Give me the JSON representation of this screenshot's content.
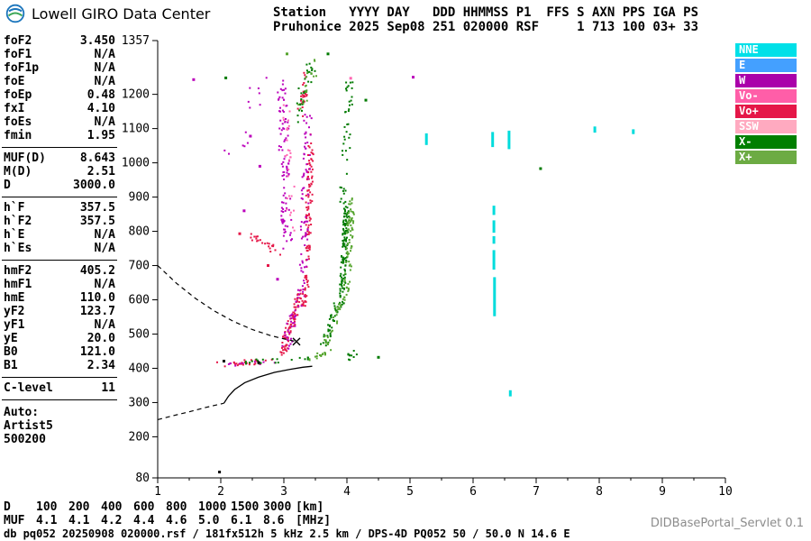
{
  "header": {
    "brand": "Lowell GIRO Data Center",
    "line1": "Station   YYYY DAY   DDD HHMMSS P1  FFS S AXN PPS IGA PS",
    "line2": "Pruhonice 2025 Sep08 251 020000 RSF     1 713 100 03+ 33"
  },
  "params": {
    "groups": [
      [
        [
          "foF2",
          "3.450"
        ],
        [
          "foF1",
          "N/A"
        ],
        [
          "foF1p",
          "N/A"
        ],
        [
          "foE",
          "N/A"
        ],
        [
          "foEp",
          "0.48"
        ],
        [
          "fxI",
          "4.10"
        ],
        [
          "foEs",
          "N/A"
        ],
        [
          "fmin",
          "1.95"
        ]
      ],
      [
        [
          "MUF(D)",
          "8.643"
        ],
        [
          "M(D)",
          "2.51"
        ],
        [
          "D",
          "3000.0"
        ]
      ],
      [
        [
          "h`F",
          "357.5"
        ],
        [
          "h`F2",
          "357.5"
        ],
        [
          "h`E",
          "N/A"
        ],
        [
          "h`Es",
          "N/A"
        ]
      ],
      [
        [
          "hmF2",
          "405.2"
        ],
        [
          "hmF1",
          "N/A"
        ],
        [
          "hmE",
          "110.0"
        ],
        [
          "yF2",
          "123.7"
        ],
        [
          "yF1",
          "N/A"
        ],
        [
          "yE",
          "20.0"
        ],
        [
          "B0",
          "121.0"
        ],
        [
          "B1",
          "2.34"
        ]
      ],
      [
        [
          "C-level",
          "11"
        ]
      ]
    ],
    "auto_label": "Auto:",
    "auto_lines": [
      "Artist5",
      "500200"
    ]
  },
  "legend": {
    "items": [
      {
        "label": "NNE",
        "color": "#00E0E8"
      },
      {
        "label": "E",
        "color": "#44A0FF"
      },
      {
        "label": "W",
        "color": "#AA00AA"
      },
      {
        "label": "Vo-",
        "color": "#FF5EA8"
      },
      {
        "label": "Vo+",
        "color": "#E51748"
      },
      {
        "label": "SSW",
        "color": "#FFAAC0"
      },
      {
        "label": "X-",
        "color": "#007F00"
      },
      {
        "label": "X+",
        "color": "#6CAB43"
      }
    ]
  },
  "footer": {
    "dmuf": {
      "rows": [
        {
          "label": "D",
          "values": [
            "100",
            "200",
            "400",
            "600",
            "800",
            "1000",
            "1500",
            "3000"
          ],
          "unit": "[km]"
        },
        {
          "label": "MUF",
          "values": [
            "4.1",
            "4.1",
            "4.2",
            "4.4",
            "4.6",
            "5.0",
            "6.1",
            "8.6"
          ],
          "unit": "[MHz]"
        }
      ]
    },
    "status_line": "db pq052 20250908 020000.rsf / 181fx512h 5 kHz 2.5 km / DPS-4D PQ052 50 / 50.0 N 14.6 E",
    "servlet": "DIDBasePortal_Servlet 0.1"
  },
  "chart_data": {
    "type": "scatter",
    "title": "Pruhonice ionogram 2025 Sep08 251 020000 RSF",
    "xlabel": "[MHz]",
    "ylabel": "[km]",
    "xlim": [
      1,
      10
    ],
    "ylim": [
      80,
      1357
    ],
    "grid": false,
    "legend_position": "right",
    "x_ticks": [
      1,
      2,
      3,
      4,
      5,
      6,
      7,
      8,
      9,
      10
    ],
    "y_ticks": [
      80,
      200,
      300,
      400,
      500,
      600,
      700,
      800,
      900,
      1000,
      1100,
      1200,
      1357
    ],
    "colors": {
      "red": "#E51748",
      "magenta": "#BB00BB",
      "pink": "#FF66B2",
      "dgreen": "#007A00",
      "lgreen": "#56A52F",
      "cyan": "#00DCDC",
      "black": "#000000"
    },
    "clusters": [
      [
        "red",
        1.95,
        412,
        2.95,
        422,
        0.06,
        16,
        26
      ],
      [
        "magenta",
        2.05,
        408,
        2.9,
        420,
        0.05,
        10,
        10
      ],
      [
        "red",
        2.95,
        435,
        3.28,
        620,
        0.1,
        36,
        85
      ],
      [
        "magenta",
        3.02,
        455,
        3.3,
        650,
        0.12,
        36,
        40
      ],
      [
        "red",
        3.34,
        600,
        3.43,
        1060,
        0.1,
        50,
        110
      ],
      [
        "magenta",
        3.3,
        640,
        3.38,
        1150,
        0.12,
        50,
        70
      ],
      [
        "magenta",
        3.05,
        770,
        2.97,
        1230,
        0.16,
        55,
        100
      ],
      [
        "pink",
        3.12,
        820,
        3.05,
        1180,
        0.14,
        45,
        30
      ],
      [
        "red",
        2.5,
        785,
        2.95,
        735,
        0.08,
        22,
        22
      ],
      [
        "magenta",
        2.2,
        1010,
        2.7,
        1250,
        0.3,
        70,
        13
      ],
      [
        "red",
        3.27,
        1140,
        3.36,
        1265,
        0.1,
        35,
        22
      ],
      [
        "dgreen",
        2.35,
        418,
        3.45,
        428,
        0.08,
        14,
        20
      ],
      [
        "lgreen",
        3.3,
        425,
        3.72,
        448,
        0.08,
        14,
        16
      ],
      [
        "dgreen",
        3.6,
        455,
        3.9,
        610,
        0.09,
        30,
        40
      ],
      [
        "lgreen",
        3.65,
        465,
        3.95,
        620,
        0.09,
        30,
        28
      ],
      [
        "dgreen",
        3.92,
        600,
        4.0,
        880,
        0.09,
        48,
        110
      ],
      [
        "lgreen",
        3.99,
        620,
        4.08,
        900,
        0.1,
        48,
        70
      ],
      [
        "dgreen",
        3.95,
        890,
        4.05,
        1260,
        0.12,
        65,
        40
      ],
      [
        "dgreen",
        3.2,
        1130,
        3.45,
        1290,
        0.12,
        55,
        28
      ],
      [
        "lgreen",
        3.25,
        1150,
        3.48,
        1280,
        0.12,
        50,
        18
      ],
      [
        "dgreen",
        4.0,
        428,
        4.15,
        445,
        0.06,
        18,
        10
      ]
    ],
    "bars": [
      [
        6.33,
        875,
        848
      ],
      [
        6.33,
        832,
        796
      ],
      [
        6.33,
        786,
        764
      ],
      [
        6.33,
        745,
        688
      ],
      [
        6.34,
        666,
        552
      ],
      [
        6.31,
        1090,
        1046
      ],
      [
        6.57,
        1094,
        1040
      ],
      [
        5.26,
        1086,
        1052
      ],
      [
        6.59,
        336,
        318
      ],
      [
        7.93,
        1106,
        1088
      ],
      [
        8.54,
        1098,
        1084
      ]
    ],
    "singles": [
      [
        1.57,
        1243,
        "magenta"
      ],
      [
        2.08,
        1248,
        "dgreen"
      ],
      [
        2.47,
        1078,
        "magenta"
      ],
      [
        3.05,
        1318,
        "lgreen"
      ],
      [
        4.3,
        1183,
        "dgreen"
      ],
      [
        4.06,
        1247,
        "pink"
      ],
      [
        4.5,
        432,
        "dgreen"
      ],
      [
        7.07,
        983,
        "dgreen"
      ],
      [
        2.3,
        793,
        "red"
      ],
      [
        2.37,
        860,
        "magenta"
      ],
      [
        2.62,
        990,
        "magenta"
      ],
      [
        1.98,
        97,
        "black"
      ],
      [
        2.6,
        417,
        "black"
      ],
      [
        2.05,
        421,
        "black"
      ],
      [
        3.7,
        1318,
        "dgreen"
      ],
      [
        5.05,
        1250,
        "magenta"
      ],
      [
        2.9,
        660,
        "magenta"
      ],
      [
        2.75,
        700,
        "red"
      ]
    ],
    "curves": {
      "profile_solid": [
        [
          2.05,
          298
        ],
        [
          2.12,
          318
        ],
        [
          2.22,
          338
        ],
        [
          2.38,
          358
        ],
        [
          2.6,
          374
        ],
        [
          2.85,
          388
        ],
        [
          3.1,
          397
        ],
        [
          3.3,
          403
        ],
        [
          3.45,
          406
        ]
      ],
      "profile_dashed": [
        [
          1.0,
          250
        ],
        [
          1.25,
          262
        ],
        [
          1.5,
          273
        ],
        [
          1.75,
          285
        ],
        [
          2.05,
          298
        ]
      ],
      "muf_dashed": [
        [
          1.0,
          700
        ],
        [
          1.3,
          648
        ],
        [
          1.6,
          604
        ],
        [
          1.9,
          567
        ],
        [
          2.2,
          537
        ],
        [
          2.5,
          513
        ],
        [
          2.8,
          495
        ],
        [
          3.05,
          484
        ],
        [
          3.2,
          478
        ]
      ],
      "x_marker": [
        3.2,
        478
      ]
    }
  }
}
